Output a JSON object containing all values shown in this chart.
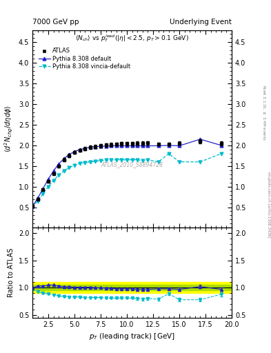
{
  "title_left": "7000 GeV pp",
  "title_right": "Underlying Event",
  "watermark": "ATLAS_2010_S8894728",
  "atlas_x": [
    1.0,
    1.5,
    2.0,
    2.5,
    3.0,
    3.5,
    4.0,
    4.5,
    5.0,
    5.5,
    6.0,
    6.5,
    7.0,
    7.5,
    8.0,
    8.5,
    9.0,
    9.5,
    10.0,
    10.5,
    11.0,
    11.5,
    12.0,
    13.0,
    14.0,
    15.0,
    17.0,
    19.0
  ],
  "atlas_y": [
    0.52,
    0.7,
    0.92,
    1.12,
    1.32,
    1.5,
    1.65,
    1.75,
    1.83,
    1.88,
    1.92,
    1.95,
    1.97,
    1.99,
    2.01,
    2.02,
    2.03,
    2.04,
    2.04,
    2.04,
    2.05,
    2.05,
    2.06,
    2.03,
    2.03,
    2.05,
    2.1,
    2.05
  ],
  "atlas_yerr": [
    0.02,
    0.02,
    0.02,
    0.03,
    0.03,
    0.03,
    0.04,
    0.04,
    0.04,
    0.04,
    0.04,
    0.04,
    0.04,
    0.04,
    0.04,
    0.04,
    0.04,
    0.04,
    0.04,
    0.04,
    0.04,
    0.04,
    0.04,
    0.04,
    0.04,
    0.04,
    0.05,
    0.05
  ],
  "pythia_default_x": [
    1.0,
    1.5,
    2.0,
    2.5,
    3.0,
    3.5,
    4.0,
    4.5,
    5.0,
    5.5,
    6.0,
    6.5,
    7.0,
    7.5,
    8.0,
    8.5,
    9.0,
    9.5,
    10.0,
    10.5,
    11.0,
    11.5,
    12.0,
    13.0,
    14.0,
    15.0,
    17.0,
    19.0
  ],
  "pythia_default_y": [
    0.52,
    0.72,
    0.95,
    1.18,
    1.38,
    1.55,
    1.68,
    1.78,
    1.85,
    1.9,
    1.93,
    1.96,
    1.97,
    1.98,
    1.98,
    1.99,
    1.99,
    1.99,
    1.99,
    1.99,
    1.99,
    1.99,
    1.99,
    1.99,
    2.0,
    1.99,
    2.15,
    2.0
  ],
  "pythia_vincia_x": [
    1.0,
    1.5,
    2.0,
    2.5,
    3.0,
    3.5,
    4.0,
    4.5,
    5.0,
    5.5,
    6.0,
    6.5,
    7.0,
    7.5,
    8.0,
    8.5,
    9.0,
    9.5,
    10.0,
    10.5,
    11.0,
    11.5,
    12.0,
    13.0,
    14.0,
    15.0,
    17.0,
    19.0
  ],
  "pythia_vincia_y": [
    0.5,
    0.65,
    0.83,
    1.0,
    1.15,
    1.28,
    1.38,
    1.46,
    1.52,
    1.56,
    1.58,
    1.6,
    1.61,
    1.63,
    1.64,
    1.64,
    1.65,
    1.65,
    1.65,
    1.65,
    1.65,
    1.63,
    1.65,
    1.6,
    1.8,
    1.6,
    1.6,
    1.8
  ],
  "ratio_default_y": [
    1.0,
    1.03,
    1.03,
    1.05,
    1.05,
    1.03,
    1.02,
    1.02,
    1.01,
    1.01,
    1.01,
    1.01,
    1.0,
    1.0,
    0.99,
    0.99,
    0.98,
    0.98,
    0.98,
    0.98,
    0.97,
    0.97,
    0.97,
    0.98,
    0.98,
    0.97,
    1.02,
    0.97
  ],
  "ratio_vincia_y": [
    0.96,
    0.93,
    0.9,
    0.89,
    0.87,
    0.85,
    0.84,
    0.83,
    0.83,
    0.83,
    0.82,
    0.82,
    0.82,
    0.82,
    0.81,
    0.81,
    0.81,
    0.81,
    0.81,
    0.81,
    0.8,
    0.79,
    0.8,
    0.79,
    0.89,
    0.78,
    0.78,
    0.88
  ],
  "ratio_default_yerr": [
    0.01,
    0.01,
    0.01,
    0.01,
    0.01,
    0.01,
    0.01,
    0.01,
    0.01,
    0.01,
    0.01,
    0.01,
    0.01,
    0.01,
    0.01,
    0.01,
    0.01,
    0.01,
    0.01,
    0.01,
    0.02,
    0.02,
    0.02,
    0.02,
    0.02,
    0.03,
    0.03,
    0.03
  ],
  "ratio_vincia_yerr": [
    0.01,
    0.01,
    0.01,
    0.01,
    0.01,
    0.01,
    0.01,
    0.01,
    0.01,
    0.01,
    0.01,
    0.01,
    0.01,
    0.01,
    0.01,
    0.01,
    0.01,
    0.01,
    0.01,
    0.01,
    0.02,
    0.02,
    0.02,
    0.02,
    0.03,
    0.03,
    0.03,
    0.04
  ],
  "band_inner_color": "#aadd00",
  "band_outer_color": "#ffff00",
  "band_inner": 0.05,
  "band_outer": 0.1,
  "color_atlas": "#000000",
  "color_pythia_default": "#2222cc",
  "color_pythia_vincia": "#00bbcc",
  "xlim": [
    1,
    20
  ],
  "ylim_main": [
    0,
    4.8
  ],
  "ylim_ratio": [
    0.45,
    2.1
  ],
  "yticks_main": [
    0.5,
    1.0,
    1.5,
    2.0,
    2.5,
    3.0,
    3.5,
    4.0,
    4.5
  ],
  "yticks_ratio": [
    0.5,
    1.0,
    1.5,
    2.0
  ]
}
